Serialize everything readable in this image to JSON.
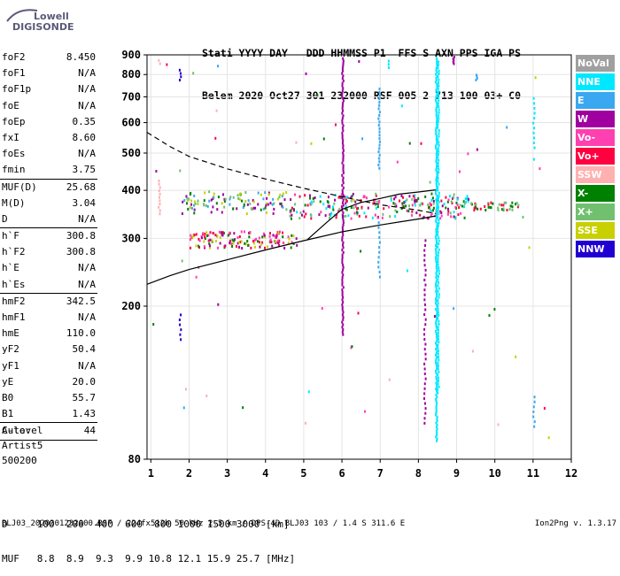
{
  "logo": {
    "line1": "Lowell",
    "line2": "DIGISONDE"
  },
  "header": {
    "line1": "Stati YYYY DAY   DDD HHMMSS P1  FFS S AXN PPS IGA PS",
    "line2": "Belem 2020 Oct27 301 232000 RSF 005 2 713 100 03+ C0"
  },
  "params_groups": [
    [
      {
        "k": "foF2",
        "v": "8.450"
      },
      {
        "k": "foF1",
        "v": "N/A"
      },
      {
        "k": "foF1p",
        "v": "N/A"
      },
      {
        "k": "foE",
        "v": "N/A"
      },
      {
        "k": "foEp",
        "v": "0.35"
      },
      {
        "k": "fxI",
        "v": "8.60"
      },
      {
        "k": "foEs",
        "v": "N/A"
      },
      {
        "k": "fmin",
        "v": "3.75"
      }
    ],
    [
      {
        "k": "MUF(D)",
        "v": "25.68"
      },
      {
        "k": "M(D)",
        "v": "3.04"
      },
      {
        "k": "D",
        "v": "N/A"
      }
    ],
    [
      {
        "k": "h`F",
        "v": "300.8"
      },
      {
        "k": "h`F2",
        "v": "300.8"
      },
      {
        "k": "h`E",
        "v": "N/A"
      },
      {
        "k": "h`Es",
        "v": "N/A"
      }
    ],
    [
      {
        "k": "hmF2",
        "v": "342.5"
      },
      {
        "k": "hmF1",
        "v": "N/A"
      },
      {
        "k": "hmE",
        "v": "110.0"
      },
      {
        "k": "yF2",
        "v": "50.4"
      },
      {
        "k": "yF1",
        "v": "N/A"
      },
      {
        "k": "yE",
        "v": "20.0"
      },
      {
        "k": "B0",
        "v": "55.7"
      },
      {
        "k": "B1",
        "v": "1.43"
      }
    ],
    [
      {
        "k": "C-level",
        "v": "44"
      }
    ]
  ],
  "auto": {
    "line1": "Auto:",
    "line2": "Artist5",
    "line3": "500200"
  },
  "legend": [
    {
      "label": "NoVal",
      "color": "#a0a0a0"
    },
    {
      "label": "NNE",
      "color": "#00e8ff"
    },
    {
      "label": "E",
      "color": "#3aa8f0"
    },
    {
      "label": "W",
      "color": "#a000a0"
    },
    {
      "label": "Vo-",
      "color": "#ff40b0"
    },
    {
      "label": "Vo+",
      "color": "#ff0040"
    },
    {
      "label": "SSW",
      "color": "#ffb0b0"
    },
    {
      "label": "X-",
      "color": "#008000"
    },
    {
      "label": "X+",
      "color": "#70c070"
    },
    {
      "label": "SSE",
      "color": "#c8d000"
    },
    {
      "label": "NNW",
      "color": "#2000d0"
    }
  ],
  "bottom": {
    "d_line": "D     100  200  400  600  800 1000 1500 3000 [km]",
    "muf_line": "MUF   8.8  8.9  9.3  9.9 10.8 12.1 15.9 25.7 [MHz]"
  },
  "footer": "BLJ03_2020301232000.RSF / 224fx512h 50 kHz 2.5 km / DPS-4D BLJ03 103 / 1.4 S 311.6 E",
  "version": "Ion2Png v. 1.3.17",
  "chart_data": {
    "type": "scatter",
    "x_ticks": [
      1,
      2,
      3,
      4,
      5,
      6,
      7,
      8,
      9,
      10,
      11,
      12
    ],
    "y_ticks": [
      80,
      200,
      300,
      400,
      500,
      600,
      700,
      800,
      900
    ],
    "x_range": [
      0.9,
      12.0
    ],
    "y_axis": "log",
    "y_range": [
      80,
      900
    ],
    "grid": true,
    "lines": [
      {
        "style": "dashed",
        "points": [
          [
            0.9,
            566
          ],
          [
            1.5,
            520
          ],
          [
            2,
            490
          ],
          [
            3,
            455
          ],
          [
            4,
            428
          ],
          [
            5,
            405
          ],
          [
            6,
            385
          ],
          [
            7,
            367
          ],
          [
            8,
            355
          ],
          [
            8.45,
            348
          ]
        ]
      },
      {
        "style": "solid",
        "points": [
          [
            0.9,
            228
          ],
          [
            1.5,
            240
          ],
          [
            2,
            249
          ],
          [
            3,
            264
          ],
          [
            4,
            280
          ],
          [
            5,
            296
          ],
          [
            6,
            312
          ],
          [
            7,
            325
          ],
          [
            7.5,
            331
          ],
          [
            8,
            337
          ],
          [
            8.45,
            343
          ]
        ]
      },
      {
        "style": "solid",
        "points": [
          [
            5.1,
            298
          ],
          [
            5.6,
            330
          ],
          [
            6,
            357
          ],
          [
            6.5,
            372
          ],
          [
            7,
            381
          ],
          [
            7.5,
            391
          ],
          [
            8,
            396
          ],
          [
            8.45,
            401
          ]
        ]
      }
    ]
  }
}
